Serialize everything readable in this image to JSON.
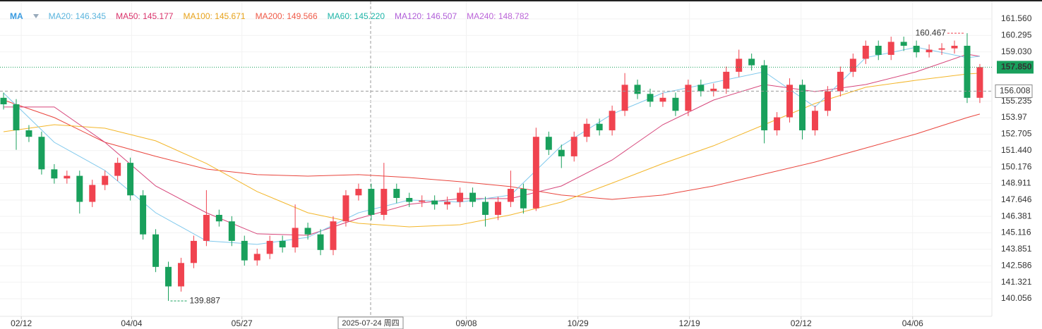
{
  "chart_data": {
    "type": "candlestick",
    "legend_heading": "MA",
    "legend": [
      {
        "text": "MA20: 146.345",
        "color": "#5ab4dd"
      },
      {
        "text": "MA50: 145.177",
        "color": "#d9336b"
      },
      {
        "text": "MA100: 145.671",
        "color": "#e7a21a"
      },
      {
        "text": "MA200: 149.566",
        "color": "#ef5a48"
      },
      {
        "text": "MA60: 145.220",
        "color": "#1fb5a8"
      },
      {
        "text": "MA120: 146.507",
        "color": "#b05ed8"
      },
      {
        "text": "MA240: 148.782",
        "color": "#bb64d8"
      }
    ],
    "up_color": "#f0434f",
    "down_color": "#19a05c",
    "open": [
      155.5,
      155.0,
      153.0,
      152.5,
      150.0,
      149.3,
      149.5,
      147.5,
      148.8,
      149.5,
      150.5,
      148.0,
      145.0,
      142.5,
      141.0,
      142.8,
      144.5,
      146.5,
      146.0,
      144.5,
      143.0,
      143.5,
      144.5,
      144.0,
      145.5,
      145.0,
      143.8,
      146.0,
      148.0,
      148.5,
      146.5,
      148.5,
      147.8,
      147.5,
      147.6,
      147.3,
      147.5,
      148.2,
      147.5,
      146.5,
      147.5,
      148.5,
      147.0,
      152.5,
      151.5,
      151.0,
      152.5,
      153.5,
      153.0,
      154.5,
      156.5,
      155.8,
      155.2,
      155.5,
      154.5,
      156.5,
      156.0,
      156.2,
      157.5,
      158.5,
      158.0,
      153.0,
      154.0,
      156.5,
      153.0,
      154.5,
      156.0,
      157.5,
      158.5,
      159.5,
      158.8,
      159.8,
      159.5,
      159.0,
      159.2,
      159.3,
      159.5,
      155.5
    ],
    "high": [
      155.9,
      155.4,
      153.4,
      152.9,
      150.4,
      149.9,
      149.9,
      149.2,
      149.9,
      150.9,
      150.9,
      148.4,
      145.4,
      142.9,
      143.2,
      144.9,
      148.4,
      146.9,
      146.4,
      144.9,
      143.9,
      144.9,
      144.9,
      147.3,
      145.9,
      145.4,
      146.4,
      148.4,
      148.9,
      148.9,
      150.5,
      148.9,
      148.2,
      148.0,
      148.0,
      147.9,
      148.6,
      148.6,
      147.9,
      147.9,
      149.9,
      148.9,
      153.2,
      152.9,
      151.9,
      152.9,
      153.9,
      153.9,
      154.9,
      157.4,
      156.9,
      156.2,
      155.9,
      155.9,
      156.9,
      156.9,
      156.6,
      157.9,
      159.2,
      158.9,
      158.4,
      154.4,
      157.0,
      156.9,
      154.9,
      156.4,
      157.9,
      158.9,
      159.9,
      159.9,
      160.2,
      160.2,
      159.9,
      159.6,
      159.7,
      159.9,
      160.467,
      158.1
    ],
    "low": [
      154.6,
      151.5,
      152.1,
      149.6,
      148.9,
      148.9,
      146.6,
      147.1,
      148.4,
      149.1,
      147.6,
      144.6,
      142.1,
      139.887,
      140.6,
      142.4,
      144.1,
      145.6,
      144.1,
      142.6,
      142.6,
      143.1,
      143.6,
      143.6,
      144.6,
      143.4,
      143.4,
      145.6,
      147.6,
      146.1,
      146.1,
      147.4,
      147.1,
      147.1,
      146.9,
      146.9,
      147.1,
      147.1,
      145.6,
      146.1,
      147.1,
      146.6,
      146.8,
      151.1,
      150.1,
      150.6,
      152.1,
      152.6,
      152.6,
      154.1,
      155.4,
      154.8,
      154.8,
      154.1,
      154.1,
      155.6,
      155.6,
      155.8,
      157.1,
      157.6,
      152.0,
      152.6,
      153.6,
      152.3,
      152.6,
      154.1,
      155.6,
      157.1,
      158.1,
      158.4,
      158.4,
      159.1,
      158.6,
      158.6,
      158.8,
      158.9,
      155.1,
      155.1
    ],
    "close": [
      155.0,
      153.0,
      152.5,
      150.0,
      149.3,
      149.5,
      147.5,
      148.8,
      149.5,
      150.5,
      148.0,
      145.0,
      142.5,
      141.0,
      142.8,
      144.5,
      146.5,
      146.0,
      144.5,
      143.0,
      143.5,
      144.5,
      144.0,
      145.5,
      145.0,
      143.8,
      146.0,
      148.0,
      148.5,
      146.5,
      148.5,
      147.8,
      147.5,
      147.6,
      147.3,
      147.5,
      148.2,
      147.5,
      146.5,
      147.5,
      148.5,
      147.0,
      152.5,
      151.5,
      151.0,
      152.5,
      153.5,
      153.0,
      154.5,
      156.5,
      155.8,
      155.2,
      155.5,
      154.5,
      156.5,
      156.0,
      156.2,
      157.5,
      158.5,
      158.0,
      153.0,
      154.0,
      156.5,
      153.0,
      154.5,
      156.0,
      157.5,
      158.5,
      159.5,
      158.8,
      159.8,
      159.5,
      159.0,
      159.2,
      159.3,
      159.5,
      155.5,
      157.85
    ],
    "ma_lines": [
      {
        "color": "#e9453d",
        "x": [
          0,
          4,
          8,
          12,
          16,
          20,
          24,
          28,
          32,
          36,
          40,
          44,
          48,
          52,
          56,
          60,
          64,
          68,
          72,
          76,
          77
        ],
        "values": [
          155.33,
          153.98,
          152.08,
          151.0,
          150.02,
          149.59,
          149.48,
          149.59,
          149.37,
          149.05,
          148.67,
          148.02,
          147.69,
          148.02,
          148.72,
          149.64,
          150.56,
          151.64,
          152.73,
          153.98,
          154.25
        ]
      },
      {
        "color": "#f3b62a",
        "x": [
          0,
          4,
          8,
          12,
          16,
          20,
          24,
          28,
          32,
          36,
          40,
          44,
          48,
          52,
          56,
          60,
          64,
          68,
          72,
          76,
          77
        ],
        "values": [
          152.89,
          153.43,
          153.16,
          152.19,
          150.45,
          148.29,
          146.66,
          145.85,
          145.58,
          145.74,
          146.5,
          147.48,
          148.94,
          150.45,
          151.81,
          153.43,
          155.06,
          156.31,
          156.85,
          157.33,
          157.39
        ]
      },
      {
        "color": "#d6457a",
        "x": [
          0,
          4,
          8,
          12,
          16,
          20,
          24,
          28,
          32,
          36,
          40,
          44,
          48,
          52,
          56,
          60,
          64,
          68,
          72,
          76,
          77
        ],
        "values": [
          154.79,
          154.79,
          152.08,
          148.72,
          146.66,
          145.04,
          144.93,
          146.23,
          147.31,
          147.75,
          147.75,
          148.72,
          150.72,
          153.43,
          155.33,
          156.52,
          155.98,
          156.52,
          157.5,
          158.85,
          158.69
        ]
      },
      {
        "color": "#7fc8ec",
        "x": [
          0,
          4,
          8,
          12,
          16,
          20,
          24,
          28,
          32,
          36,
          40,
          44,
          48,
          52,
          56,
          60,
          64,
          68,
          72,
          76,
          77
        ],
        "values": [
          155.87,
          152.08,
          149.91,
          146.66,
          144.5,
          144.23,
          144.77,
          146.66,
          147.64,
          147.48,
          148.02,
          151.81,
          154.25,
          155.87,
          156.68,
          157.5,
          154.79,
          158.58,
          159.39,
          158.58,
          158.69
        ]
      }
    ],
    "last_price_label": "157.850",
    "crosshair": {
      "price": 156.008,
      "date_label": "2025-07-24 周四"
    },
    "xlim": [
      -0.28,
      77.95
    ],
    "xticks": [
      {
        "value": 1.4,
        "label": "02/12"
      },
      {
        "value": 10.1,
        "label": "04/04"
      },
      {
        "value": 18.8,
        "label": "05/27"
      },
      {
        "value": 36.5,
        "label": "09/08"
      },
      {
        "value": 45.3,
        "label": "10/29"
      },
      {
        "value": 54.1,
        "label": "12/19"
      },
      {
        "value": 62.9,
        "label": "02/12"
      },
      {
        "value": 71.7,
        "label": "04/06"
      }
    ],
    "ylim": [
      138.7,
      162.91
    ],
    "yticks": [
      {
        "value": 161.56,
        "label": "161.560"
      },
      160.295,
      {
        "value": 159.03,
        "label": "159.030"
      },
      155.235,
      153.97,
      152.705,
      {
        "value": 151.44,
        "label": "151.440"
      },
      150.176,
      148.911,
      147.646,
      146.381,
      145.116,
      143.851,
      142.586,
      141.321,
      140.056
    ],
    "grid": true
  }
}
